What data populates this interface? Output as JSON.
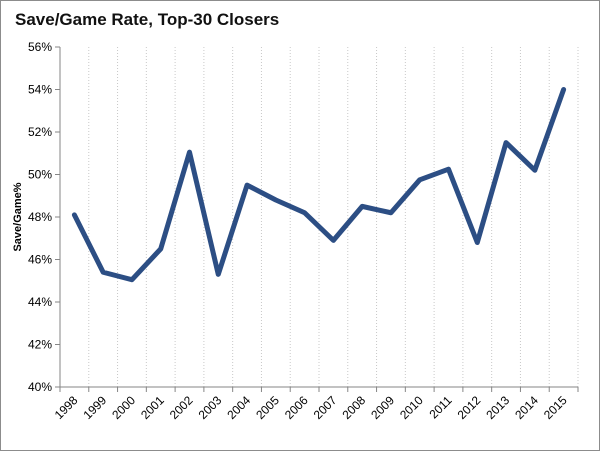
{
  "chart_data": {
    "type": "line",
    "title": "Save/Game Rate, Top-30 Closers",
    "xlabel": "",
    "ylabel": "Save/Game%",
    "categories": [
      "1998",
      "1999",
      "2000",
      "2001",
      "2002",
      "2003",
      "2004",
      "2005",
      "2006",
      "2007",
      "2008",
      "2009",
      "2010",
      "2011",
      "2012",
      "2013",
      "2014",
      "2015"
    ],
    "series": [
      {
        "values": [
          48.1,
          45.4,
          45.05,
          46.5,
          51.05,
          45.3,
          49.5,
          48.8,
          48.2,
          46.9,
          48.5,
          48.2,
          49.75,
          50.25,
          46.8,
          51.5,
          50.2,
          54.0
        ],
        "color": "#2c4e84"
      }
    ],
    "ylim": [
      40,
      56
    ],
    "yticks": [
      40,
      42,
      44,
      46,
      48,
      50,
      52,
      54,
      56
    ],
    "ytick_format": "percent",
    "grid": "vertical-dotted",
    "legend": "none"
  }
}
